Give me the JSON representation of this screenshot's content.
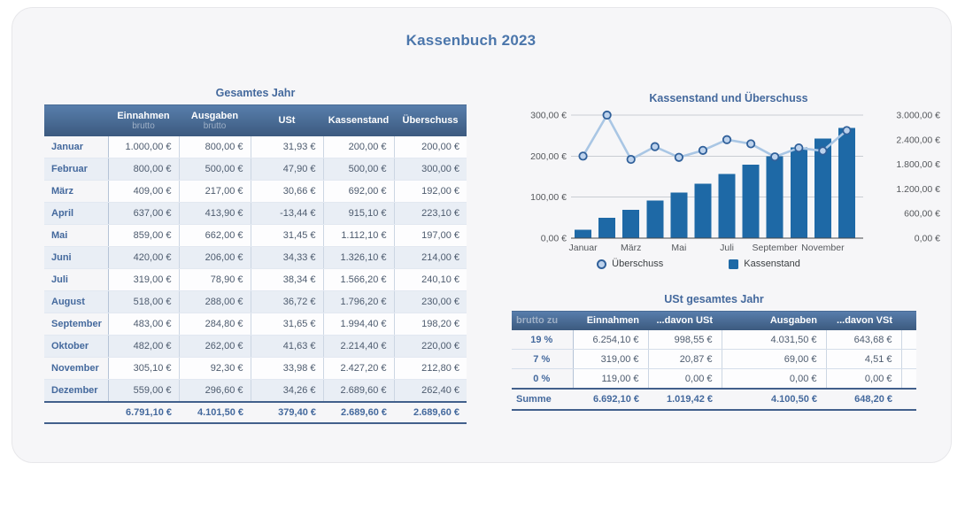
{
  "page": {
    "title": "Kassenbuch 2023"
  },
  "colors": {
    "accent": "#44699d",
    "title_blue": "#4b76ab",
    "header_gradient_top": "#587eac",
    "header_gradient_bottom": "#3b597e",
    "bar_blue": "#1e69a6",
    "line_light_blue": "#a9c6e4",
    "marker_stroke": "#30609a",
    "row_alt": "#e9eef5"
  },
  "year_table": {
    "title": "Gesamtes Jahr",
    "headers": [
      {
        "main": "Einnahmen",
        "sub": "brutto"
      },
      {
        "main": "Ausgaben",
        "sub": "brutto"
      },
      {
        "main": "USt",
        "sub": ""
      },
      {
        "main": "Kassenstand",
        "sub": ""
      },
      {
        "main": "Überschuss",
        "sub": ""
      }
    ],
    "rows": [
      [
        "Januar",
        "1.000,00 €",
        "800,00 €",
        "31,93 €",
        "200,00 €",
        "200,00 €"
      ],
      [
        "Februar",
        "800,00 €",
        "500,00 €",
        "47,90 €",
        "500,00 €",
        "300,00 €"
      ],
      [
        "März",
        "409,00 €",
        "217,00 €",
        "30,66 €",
        "692,00 €",
        "192,00 €"
      ],
      [
        "April",
        "637,00 €",
        "413,90 €",
        "-13,44 €",
        "915,10 €",
        "223,10 €"
      ],
      [
        "Mai",
        "859,00 €",
        "662,00 €",
        "31,45 €",
        "1.112,10 €",
        "197,00 €"
      ],
      [
        "Juni",
        "420,00 €",
        "206,00 €",
        "34,33 €",
        "1.326,10 €",
        "214,00 €"
      ],
      [
        "Juli",
        "319,00 €",
        "78,90 €",
        "38,34 €",
        "1.566,20 €",
        "240,10 €"
      ],
      [
        "August",
        "518,00 €",
        "288,00 €",
        "36,72 €",
        "1.796,20 €",
        "230,00 €"
      ],
      [
        "September",
        "483,00 €",
        "284,80 €",
        "31,65 €",
        "1.994,40 €",
        "198,20 €"
      ],
      [
        "Oktober",
        "482,00 €",
        "262,00 €",
        "41,63 €",
        "2.214,40 €",
        "220,00 €"
      ],
      [
        "November",
        "305,10 €",
        "92,30 €",
        "33,98 €",
        "2.427,20 €",
        "212,80 €"
      ],
      [
        "Dezember",
        "559,00 €",
        "296,60 €",
        "34,26 €",
        "2.689,60 €",
        "262,40 €"
      ]
    ],
    "total": [
      "",
      "6.791,10 €",
      "4.101,50 €",
      "379,40 €",
      "2.689,60 €",
      "2.689,60 €"
    ]
  },
  "chart_data": {
    "type": "combo",
    "title": "Kassenstand und Überschuss",
    "categories": [
      "Januar",
      "Februar",
      "März",
      "April",
      "Mai",
      "Juni",
      "Juli",
      "August",
      "September",
      "Oktober",
      "November",
      "Dezember"
    ],
    "x_tick_labels": [
      "Januar",
      "März",
      "Mai",
      "Juli",
      "September",
      "November"
    ],
    "series": [
      {
        "name": "Überschuss",
        "type": "line",
        "axis": "left",
        "values": [
          200,
          300,
          192,
          223.1,
          197,
          214,
          240.1,
          230,
          198.2,
          220,
          212.8,
          262.4
        ]
      },
      {
        "name": "Kassenstand",
        "type": "bar",
        "axis": "right",
        "values": [
          200,
          500,
          692,
          915.1,
          1112.1,
          1326.1,
          1566.2,
          1796.2,
          1994.4,
          2214.4,
          2427.2,
          2689.6
        ]
      }
    ],
    "left_axis": {
      "min": 0,
      "max": 300,
      "tick_labels": [
        "0,00 €",
        "100,00 €",
        "200,00 €",
        "300,00 €"
      ]
    },
    "right_axis": {
      "min": 0,
      "max": 3000,
      "tick_labels": [
        "0,00 €",
        "600,00 €",
        "1.200,00 €",
        "1.800,00 €",
        "2.400,00 €",
        "3.000,00 €"
      ]
    },
    "grid": true,
    "legend_position": "bottom",
    "legend": [
      {
        "label": "Überschuss",
        "marker": "circle"
      },
      {
        "label": "Kassenstand",
        "marker": "square"
      }
    ]
  },
  "ust_table": {
    "title": "USt gesamtes Jahr",
    "headers": [
      "brutto zu",
      "Einnahmen",
      "...davon USt",
      "Ausgaben",
      "...davon VSt"
    ],
    "rows": [
      [
        "19 %",
        "6.254,10 €",
        "998,55 €",
        "4.031,50 €",
        "643,68 €"
      ],
      [
        "7 %",
        "319,00 €",
        "20,87 €",
        "69,00 €",
        "4,51 €"
      ],
      [
        "0 %",
        "119,00 €",
        "0,00 €",
        "0,00 €",
        "0,00 €"
      ]
    ],
    "total": [
      "Summe",
      "6.692,10 €",
      "1.019,42 €",
      "4.100,50 €",
      "648,20 €"
    ]
  }
}
